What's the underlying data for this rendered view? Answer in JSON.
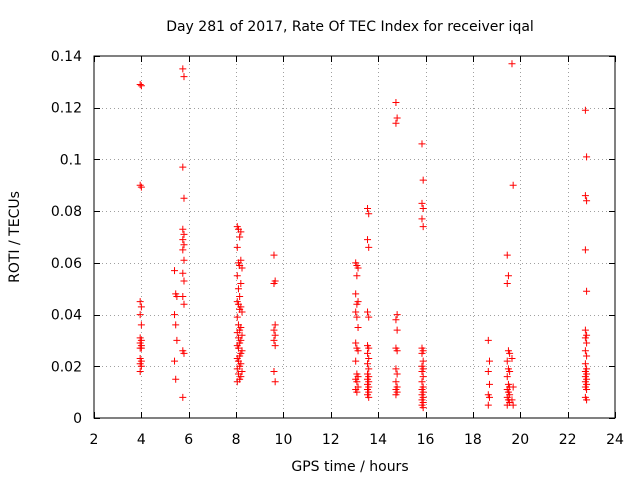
{
  "chart_data": {
    "type": "scatter",
    "title": "Day 281 of 2017, Rate Of TEC Index for receiver iqal",
    "xlabel": "GPS time / hours",
    "ylabel": "ROTI / TECUs",
    "xlim": [
      2,
      24
    ],
    "ylim": [
      0,
      0.14
    ],
    "xticks": [
      2,
      4,
      6,
      8,
      10,
      12,
      14,
      16,
      18,
      20,
      22,
      24
    ],
    "yticks": [
      0,
      0.02,
      0.04,
      0.06,
      0.08,
      0.1,
      0.12,
      0.14
    ],
    "xtick_labels": [
      "2",
      "4",
      "6",
      "8",
      "10",
      "12",
      "14",
      "16",
      "18",
      "20",
      "22",
      "24"
    ],
    "ytick_labels": [
      "0",
      "0.02",
      "0.04",
      "0.06",
      "0.08",
      "0.1",
      "0.12",
      "0.14"
    ],
    "grid": true,
    "marker": "plus",
    "color": "#ff0000",
    "series": [
      {
        "name": "ROTI",
        "points": [
          [
            3.95,
            0.129
          ],
          [
            4.0,
            0.1285
          ],
          [
            3.95,
            0.09
          ],
          [
            4.0,
            0.0893
          ],
          [
            3.95,
            0.045
          ],
          [
            4.0,
            0.043
          ],
          [
            3.95,
            0.04
          ],
          [
            4.0,
            0.036
          ],
          [
            3.95,
            0.031
          ],
          [
            4.0,
            0.03
          ],
          [
            3.95,
            0.029
          ],
          [
            4.0,
            0.028
          ],
          [
            3.95,
            0.027
          ],
          [
            4.0,
            0.027
          ],
          [
            3.95,
            0.023
          ],
          [
            4.0,
            0.022
          ],
          [
            3.95,
            0.021
          ],
          [
            4.0,
            0.02
          ],
          [
            3.95,
            0.018
          ],
          [
            5.4,
            0.057
          ],
          [
            5.45,
            0.048
          ],
          [
            5.5,
            0.047
          ],
          [
            5.4,
            0.04
          ],
          [
            5.45,
            0.036
          ],
          [
            5.5,
            0.03
          ],
          [
            5.4,
            0.022
          ],
          [
            5.45,
            0.015
          ],
          [
            5.75,
            0.135
          ],
          [
            5.8,
            0.132
          ],
          [
            5.75,
            0.097
          ],
          [
            5.8,
            0.085
          ],
          [
            5.75,
            0.073
          ],
          [
            5.8,
            0.071
          ],
          [
            5.75,
            0.069
          ],
          [
            5.8,
            0.067
          ],
          [
            5.75,
            0.065
          ],
          [
            5.8,
            0.061
          ],
          [
            5.75,
            0.056
          ],
          [
            5.8,
            0.053
          ],
          [
            5.75,
            0.047
          ],
          [
            5.8,
            0.044
          ],
          [
            5.75,
            0.026
          ],
          [
            5.8,
            0.025
          ],
          [
            5.75,
            0.008
          ],
          [
            8.05,
            0.074
          ],
          [
            8.1,
            0.073
          ],
          [
            8.2,
            0.072
          ],
          [
            8.15,
            0.07
          ],
          [
            8.05,
            0.066
          ],
          [
            8.2,
            0.061
          ],
          [
            8.1,
            0.06
          ],
          [
            8.15,
            0.059
          ],
          [
            8.25,
            0.058
          ],
          [
            8.05,
            0.055
          ],
          [
            8.2,
            0.052
          ],
          [
            8.1,
            0.05
          ],
          [
            8.15,
            0.047
          ],
          [
            8.05,
            0.045
          ],
          [
            8.1,
            0.044
          ],
          [
            8.2,
            0.043
          ],
          [
            8.15,
            0.042
          ],
          [
            8.25,
            0.041
          ],
          [
            8.05,
            0.039
          ],
          [
            8.1,
            0.036
          ],
          [
            8.2,
            0.035
          ],
          [
            8.15,
            0.034
          ],
          [
            8.05,
            0.033
          ],
          [
            8.25,
            0.032
          ],
          [
            8.1,
            0.031
          ],
          [
            8.2,
            0.03
          ],
          [
            8.15,
            0.029
          ],
          [
            8.05,
            0.028
          ],
          [
            8.1,
            0.027
          ],
          [
            8.25,
            0.026
          ],
          [
            8.2,
            0.025
          ],
          [
            8.15,
            0.024
          ],
          [
            8.05,
            0.023
          ],
          [
            8.1,
            0.022
          ],
          [
            8.2,
            0.021
          ],
          [
            8.15,
            0.02
          ],
          [
            8.05,
            0.019
          ],
          [
            8.25,
            0.018
          ],
          [
            8.1,
            0.017
          ],
          [
            8.2,
            0.016
          ],
          [
            8.15,
            0.015
          ],
          [
            8.05,
            0.014
          ],
          [
            9.6,
            0.063
          ],
          [
            9.65,
            0.053
          ],
          [
            9.6,
            0.052
          ],
          [
            9.65,
            0.036
          ],
          [
            9.6,
            0.034
          ],
          [
            9.65,
            0.032
          ],
          [
            9.6,
            0.03
          ],
          [
            9.65,
            0.028
          ],
          [
            9.6,
            0.018
          ],
          [
            9.65,
            0.014
          ],
          [
            13.05,
            0.06
          ],
          [
            13.1,
            0.059
          ],
          [
            13.15,
            0.058
          ],
          [
            13.1,
            0.055
          ],
          [
            13.05,
            0.048
          ],
          [
            13.15,
            0.045
          ],
          [
            13.1,
            0.044
          ],
          [
            13.05,
            0.041
          ],
          [
            13.1,
            0.039
          ],
          [
            13.15,
            0.035
          ],
          [
            13.05,
            0.029
          ],
          [
            13.1,
            0.027
          ],
          [
            13.15,
            0.026
          ],
          [
            13.05,
            0.022
          ],
          [
            13.1,
            0.017
          ],
          [
            13.15,
            0.016
          ],
          [
            13.05,
            0.015
          ],
          [
            13.1,
            0.014
          ],
          [
            13.15,
            0.012
          ],
          [
            13.05,
            0.011
          ],
          [
            13.1,
            0.01
          ],
          [
            13.55,
            0.081
          ],
          [
            13.6,
            0.079
          ],
          [
            13.55,
            0.069
          ],
          [
            13.6,
            0.066
          ],
          [
            13.55,
            0.041
          ],
          [
            13.6,
            0.039
          ],
          [
            13.55,
            0.028
          ],
          [
            13.6,
            0.027
          ],
          [
            13.55,
            0.025
          ],
          [
            13.6,
            0.023
          ],
          [
            13.55,
            0.021
          ],
          [
            13.6,
            0.019
          ],
          [
            13.55,
            0.017
          ],
          [
            13.6,
            0.016
          ],
          [
            13.55,
            0.015
          ],
          [
            13.6,
            0.014
          ],
          [
            13.55,
            0.013
          ],
          [
            13.6,
            0.012
          ],
          [
            13.55,
            0.011
          ],
          [
            13.6,
            0.01
          ],
          [
            13.55,
            0.009
          ],
          [
            13.6,
            0.008
          ],
          [
            14.75,
            0.122
          ],
          [
            14.8,
            0.116
          ],
          [
            14.75,
            0.114
          ],
          [
            14.8,
            0.04
          ],
          [
            14.75,
            0.038
          ],
          [
            14.8,
            0.034
          ],
          [
            14.75,
            0.027
          ],
          [
            14.8,
            0.026
          ],
          [
            14.75,
            0.019
          ],
          [
            14.8,
            0.017
          ],
          [
            14.75,
            0.014
          ],
          [
            14.8,
            0.012
          ],
          [
            14.75,
            0.011
          ],
          [
            14.8,
            0.01
          ],
          [
            14.75,
            0.009
          ],
          [
            15.85,
            0.106
          ],
          [
            15.9,
            0.092
          ],
          [
            15.85,
            0.083
          ],
          [
            15.9,
            0.081
          ],
          [
            15.85,
            0.077
          ],
          [
            15.9,
            0.074
          ],
          [
            15.85,
            0.027
          ],
          [
            15.9,
            0.026
          ],
          [
            15.85,
            0.025
          ],
          [
            15.9,
            0.022
          ],
          [
            15.85,
            0.02
          ],
          [
            15.9,
            0.019
          ],
          [
            15.85,
            0.018
          ],
          [
            15.9,
            0.016
          ],
          [
            15.85,
            0.014
          ],
          [
            15.9,
            0.012
          ],
          [
            15.85,
            0.011
          ],
          [
            15.9,
            0.01
          ],
          [
            15.85,
            0.009
          ],
          [
            15.9,
            0.008
          ],
          [
            15.85,
            0.007
          ],
          [
            15.9,
            0.006
          ],
          [
            15.85,
            0.005
          ],
          [
            15.9,
            0.004
          ],
          [
            18.65,
            0.03
          ],
          [
            18.7,
            0.022
          ],
          [
            18.65,
            0.018
          ],
          [
            18.7,
            0.013
          ],
          [
            18.65,
            0.009
          ],
          [
            18.7,
            0.008
          ],
          [
            18.65,
            0.005
          ],
          [
            19.45,
            0.063
          ],
          [
            19.5,
            0.055
          ],
          [
            19.45,
            0.052
          ],
          [
            19.5,
            0.026
          ],
          [
            19.55,
            0.025
          ],
          [
            19.45,
            0.022
          ],
          [
            19.5,
            0.019
          ],
          [
            19.55,
            0.018
          ],
          [
            19.45,
            0.016
          ],
          [
            19.5,
            0.013
          ],
          [
            19.55,
            0.012
          ],
          [
            19.45,
            0.011
          ],
          [
            19.5,
            0.01
          ],
          [
            19.55,
            0.009
          ],
          [
            19.45,
            0.008
          ],
          [
            19.5,
            0.007
          ],
          [
            19.55,
            0.006
          ],
          [
            19.45,
            0.005
          ],
          [
            19.65,
            0.137
          ],
          [
            19.7,
            0.09
          ],
          [
            19.65,
            0.023
          ],
          [
            19.7,
            0.012
          ],
          [
            19.65,
            0.007
          ],
          [
            19.7,
            0.005
          ],
          [
            22.75,
            0.119
          ],
          [
            22.8,
            0.101
          ],
          [
            22.75,
            0.086
          ],
          [
            22.8,
            0.084
          ],
          [
            22.75,
            0.065
          ],
          [
            22.8,
            0.049
          ],
          [
            22.75,
            0.034
          ],
          [
            22.8,
            0.032
          ],
          [
            22.75,
            0.031
          ],
          [
            22.8,
            0.029
          ],
          [
            22.75,
            0.026
          ],
          [
            22.8,
            0.024
          ],
          [
            22.75,
            0.021
          ],
          [
            22.8,
            0.019
          ],
          [
            22.75,
            0.018
          ],
          [
            22.8,
            0.017
          ],
          [
            22.75,
            0.016
          ],
          [
            22.8,
            0.015
          ],
          [
            22.75,
            0.014
          ],
          [
            22.8,
            0.013
          ],
          [
            22.75,
            0.012
          ],
          [
            22.8,
            0.011
          ],
          [
            22.75,
            0.008
          ],
          [
            22.8,
            0.007
          ]
        ]
      }
    ]
  }
}
